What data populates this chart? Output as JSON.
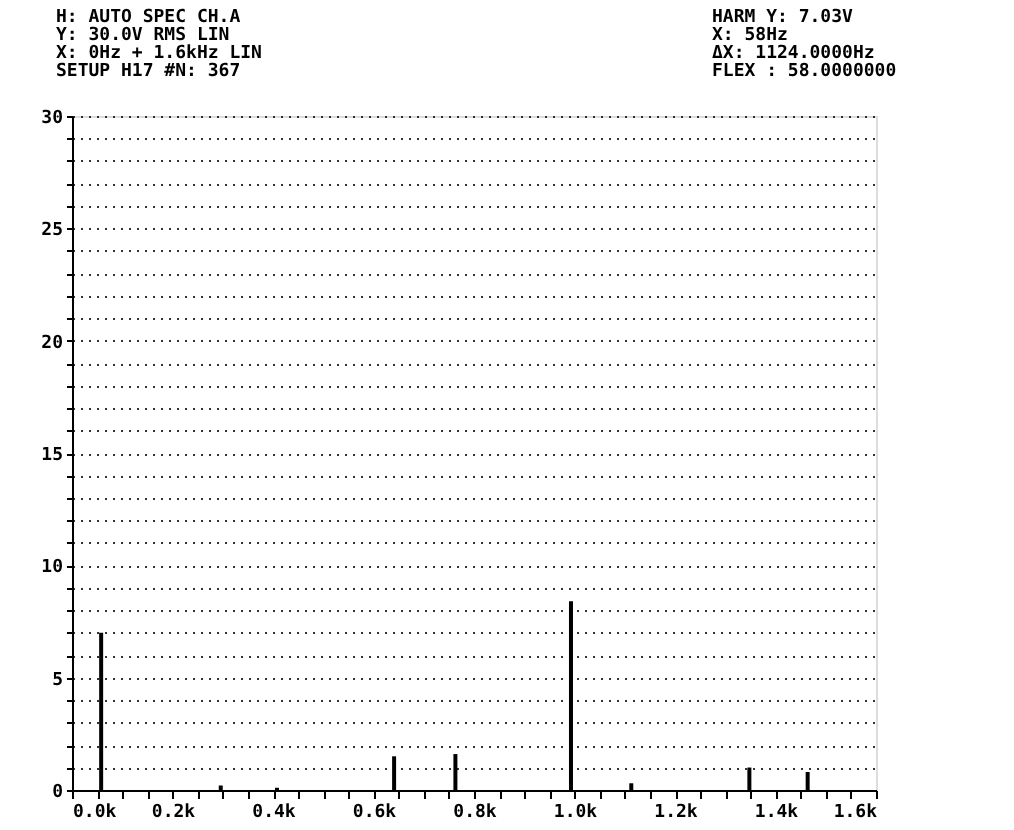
{
  "chart_data": {
    "type": "bar",
    "x": [
      58,
      296,
      408,
      641,
      763,
      993,
      1113,
      1348,
      1464
    ],
    "values": [
      7.0,
      0.2,
      0.1,
      1.5,
      1.6,
      8.4,
      0.3,
      1.0,
      0.8
    ],
    "color": "#000000",
    "xlim": [
      0,
      1600
    ],
    "xticks": [
      {
        "value": 0,
        "label": "0.0k"
      },
      {
        "value": 50,
        "label": null
      },
      {
        "value": 100,
        "label": null
      },
      {
        "value": 150,
        "label": null
      },
      {
        "value": 200,
        "label": "0.2k"
      },
      {
        "value": 250,
        "label": null
      },
      {
        "value": 300,
        "label": null
      },
      {
        "value": 350,
        "label": null
      },
      {
        "value": 400,
        "label": "0.4k"
      },
      {
        "value": 450,
        "label": null
      },
      {
        "value": 500,
        "label": null
      },
      {
        "value": 550,
        "label": null
      },
      {
        "value": 600,
        "label": "0.6k"
      },
      {
        "value": 650,
        "label": null
      },
      {
        "value": 700,
        "label": null
      },
      {
        "value": 750,
        "label": null
      },
      {
        "value": 800,
        "label": "0.8k"
      },
      {
        "value": 850,
        "label": null
      },
      {
        "value": 900,
        "label": null
      },
      {
        "value": 950,
        "label": null
      },
      {
        "value": 1000,
        "label": "1.0k"
      },
      {
        "value": 1050,
        "label": null
      },
      {
        "value": 1100,
        "label": null
      },
      {
        "value": 1150,
        "label": null
      },
      {
        "value": 1200,
        "label": "1.2k"
      },
      {
        "value": 1250,
        "label": null
      },
      {
        "value": 1300,
        "label": null
      },
      {
        "value": 1350,
        "label": null
      },
      {
        "value": 1400,
        "label": "1.4k"
      },
      {
        "value": 1450,
        "label": null
      },
      {
        "value": 1500,
        "label": null
      },
      {
        "value": 1550,
        "label": null
      },
      {
        "value": 1600,
        "label": "1.6k"
      }
    ],
    "ylim": [
      0,
      30
    ],
    "yticks": [
      0,
      {
        "value": 1,
        "label": null
      },
      {
        "value": 2,
        "label": null
      },
      {
        "value": 3,
        "label": null
      },
      {
        "value": 4,
        "label": null
      },
      5,
      {
        "value": 6,
        "label": null
      },
      {
        "value": 7,
        "label": null
      },
      {
        "value": 8,
        "label": null
      },
      {
        "value": 9,
        "label": null
      },
      10,
      {
        "value": 11,
        "label": null
      },
      {
        "value": 12,
        "label": null
      },
      {
        "value": 13,
        "label": null
      },
      {
        "value": 14,
        "label": null
      },
      15,
      {
        "value": 16,
        "label": null
      },
      {
        "value": 17,
        "label": null
      },
      {
        "value": 18,
        "label": null
      },
      {
        "value": 19,
        "label": null
      },
      20,
      {
        "value": 21,
        "label": null
      },
      {
        "value": 22,
        "label": null
      },
      {
        "value": 23,
        "label": null
      },
      {
        "value": 24,
        "label": null
      },
      25,
      {
        "value": 26,
        "label": null
      },
      {
        "value": 27,
        "label": null
      },
      {
        "value": 28,
        "label": null
      },
      {
        "value": 29,
        "label": null
      },
      30
    ],
    "grid": "y",
    "annotations": [
      "H: AUTO SPEC CH.A",
      "Y: 30.0V RMS LIN",
      "X: 0Hz + 1.6kHz    LIN",
      "SETUP H17   #N: 367",
      "HARM  Y:  7.03V",
      "X:  58Hz",
      "ΔX: 1124.0000Hz",
      "FLEX  : 58.0000000"
    ]
  }
}
